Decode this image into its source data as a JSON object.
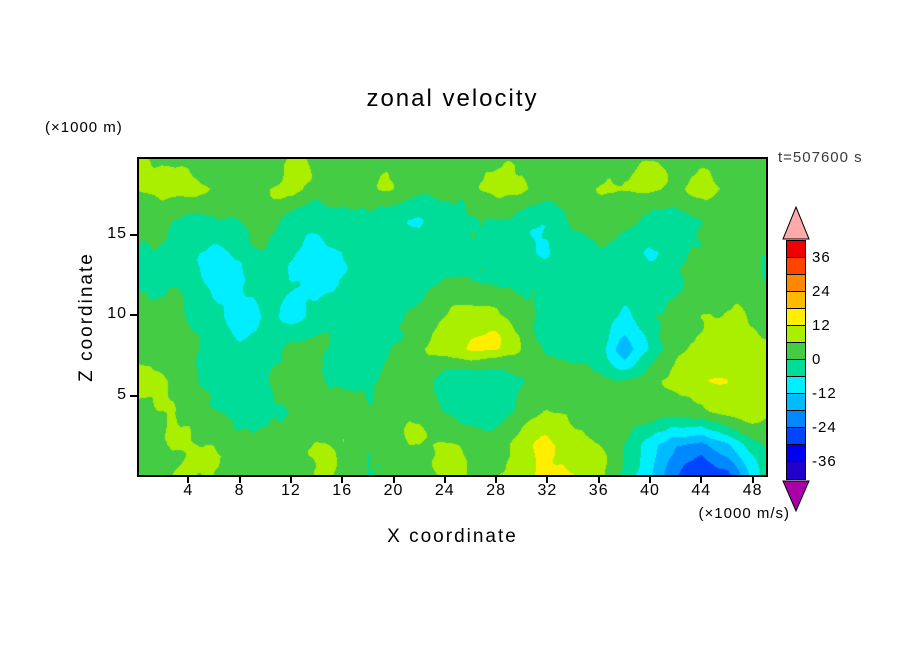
{
  "figure": {
    "title": "zonal velocity",
    "time_label": "t=507600 s",
    "y_axis_units": "(×1000 m)",
    "colorbar_units": "(×1000 m/s)"
  },
  "axes": {
    "x": {
      "label": "X coordinate",
      "ticks": [
        4,
        8,
        12,
        16,
        20,
        24,
        28,
        32,
        36,
        40,
        44,
        48
      ],
      "range": [
        0,
        49.2
      ]
    },
    "z": {
      "label": "Z coordinate",
      "ticks": [
        5,
        10,
        15
      ],
      "range": [
        0,
        19.8
      ]
    }
  },
  "colorbar": {
    "position": "right",
    "labels": [
      36,
      24,
      12,
      0,
      -12,
      -24,
      -36
    ],
    "levels": [
      -42,
      -36,
      -30,
      -24,
      -18,
      -12,
      -6,
      0,
      6,
      12,
      18,
      24,
      30,
      36,
      42
    ],
    "band_colors": [
      "#2200cc",
      "#0000ee",
      "#0044ff",
      "#0088ff",
      "#00bbff",
      "#00eeff",
      "#00dd99",
      "#44cc44",
      "#aaee00",
      "#ffee00",
      "#ffbb00",
      "#ff8800",
      "#ff4400",
      "#ee0000"
    ],
    "under_color": "#aa00aa",
    "over_color": "#ffaaaa"
  },
  "chart_data": {
    "type": "heatmap",
    "subtype": "filled-contour",
    "title": "zonal velocity",
    "xlabel": "X coordinate",
    "ylabel": "Z coordinate",
    "x_units": "×1000 m",
    "z_units": "×1000 m",
    "value_units": "×1000 m/s",
    "time_annotation": "t=507600 s",
    "x_range": [
      0,
      49.2
    ],
    "z_range": [
      0,
      19.8
    ],
    "levels": [
      -42,
      -36,
      -30,
      -24,
      -18,
      -12,
      -6,
      0,
      6,
      12,
      18,
      24,
      30,
      36,
      42
    ],
    "colorbar_position": "right",
    "grid": {
      "row_order": "bottom-to-top",
      "x0": 0,
      "dx": 2,
      "z0": 0,
      "dz": 1.98,
      "values": [
        [
          3,
          4,
          6,
          5,
          3,
          2,
          3,
          4,
          3,
          2,
          4,
          6,
          5,
          4,
          6,
          10,
          15,
          14,
          8,
          -4,
          -10,
          -22,
          -28,
          -24,
          -8,
          2
        ],
        [
          4,
          5,
          7,
          5,
          3,
          1,
          2,
          5,
          4,
          2,
          3,
          5,
          4,
          3,
          5,
          9,
          13,
          11,
          6,
          -2,
          -8,
          -16,
          -20,
          -14,
          -2,
          4
        ],
        [
          6,
          4,
          3,
          2,
          -2,
          -4,
          -2,
          2,
          4,
          3,
          2,
          3,
          -2,
          -4,
          -3,
          2,
          5,
          7,
          5,
          3,
          6,
          4,
          2,
          6,
          9,
          8
        ],
        [
          8,
          6,
          2,
          -1,
          -3,
          -2,
          1,
          3,
          2,
          1,
          3,
          2,
          -3,
          -5,
          -4,
          -1,
          2,
          4,
          3,
          2,
          4,
          7,
          10,
          12,
          10,
          7
        ],
        [
          3,
          2,
          1,
          -2,
          -4,
          -2,
          1,
          2,
          -1,
          -3,
          2,
          5,
          9,
          14,
          12,
          5,
          -1,
          -3,
          -2,
          -14,
          -6,
          2,
          6,
          10,
          8,
          5
        ],
        [
          2,
          1,
          -2,
          -5,
          -8,
          -4,
          -6,
          -3,
          -1,
          -2,
          1,
          4,
          7,
          8,
          6,
          2,
          -3,
          -5,
          -3,
          -6,
          -2,
          2,
          4,
          5,
          4,
          3
        ],
        [
          1,
          -1,
          -3,
          -4,
          -6,
          -3,
          -2,
          -4,
          -5,
          -3,
          -2,
          -1,
          2,
          3,
          2,
          -1,
          -4,
          -6,
          -4,
          -2,
          -3,
          -1,
          2,
          3,
          2,
          1
        ],
        [
          -1,
          -2,
          -4,
          -7,
          -5,
          -2,
          -4,
          -8,
          -6,
          -3,
          -4,
          -2,
          -1,
          1,
          -2,
          -4,
          -7,
          -5,
          -2,
          -4,
          -6,
          -3,
          -1,
          1,
          2,
          -1
        ],
        [
          2,
          1,
          -2,
          -3,
          -1,
          2,
          -1,
          -4,
          -2,
          1,
          -2,
          -5,
          -3,
          -1,
          1,
          -2,
          -3,
          -1,
          2,
          1,
          -2,
          -4,
          -2,
          2,
          3,
          2
        ],
        [
          4,
          6,
          8,
          5,
          3,
          5,
          7,
          4,
          2,
          4,
          6,
          3,
          2,
          5,
          7,
          8,
          5,
          3,
          6,
          8,
          7,
          4,
          6,
          7,
          5,
          4
        ],
        [
          3,
          4,
          5,
          3,
          2,
          3,
          5,
          3,
          2,
          3,
          4,
          2,
          3,
          4,
          5,
          6,
          4,
          2,
          4,
          6,
          5,
          3,
          4,
          5,
          4,
          3
        ]
      ]
    },
    "noise": {
      "amplitude": 2.6,
      "scale": 0.32,
      "octaves": 3,
      "seed": 7
    }
  }
}
